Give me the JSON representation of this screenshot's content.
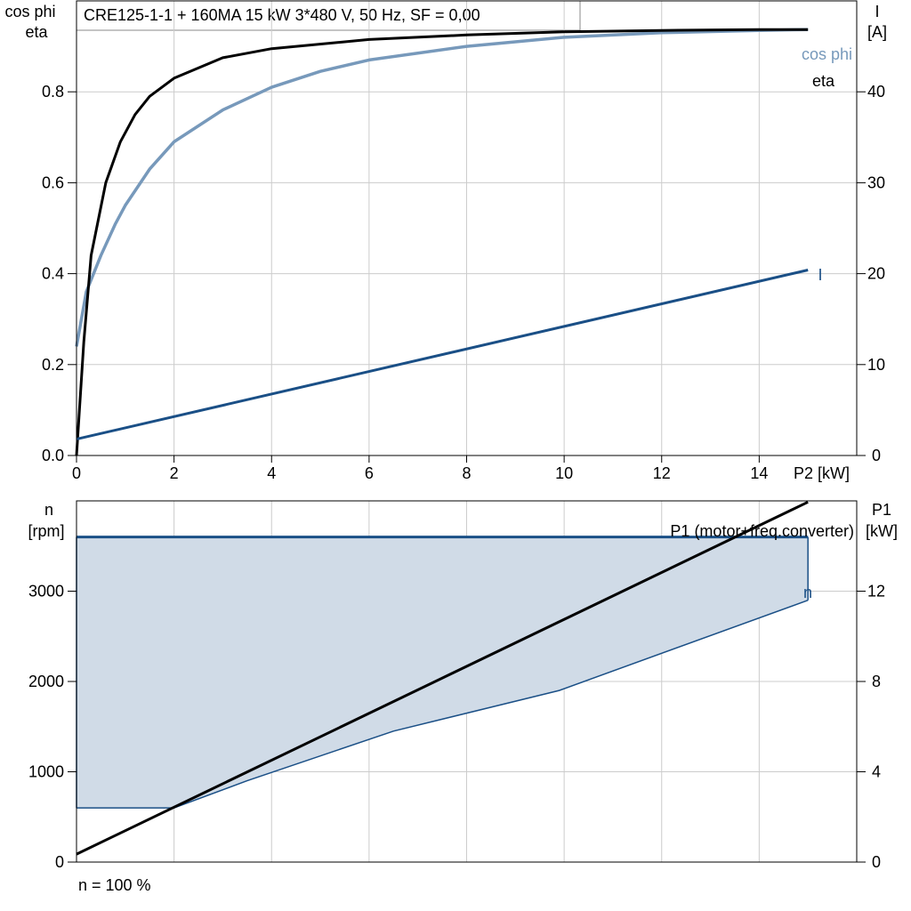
{
  "title": "CRE125-1-1 + 160MA   15 kW   3*480 V, 50 Hz, SF = 0,00",
  "colors": {
    "eta": "#000000",
    "cos_phi": "#7799bb",
    "current": "#1a4f86",
    "speed_fill": "#d0dbe7",
    "speed_line": "#1a4f86",
    "p1": "#000000",
    "grid": "#cccccc"
  },
  "footer_note": "n = 100 %",
  "chart_data": [
    {
      "type": "line",
      "xlabel": "P2 [kW]",
      "ylabel_left_line1": "cos phi",
      "ylabel_left_line2": "eta",
      "ylabel_right_line1": "I",
      "ylabel_right_line2": "[A]",
      "xlim": [
        0,
        16
      ],
      "ylim_left": [
        0,
        1.0
      ],
      "ylim_right": [
        0,
        50
      ],
      "grid": true,
      "x_ticks": [
        "0",
        "2",
        "4",
        "6",
        "8",
        "10",
        "12",
        "14"
      ],
      "left_ticks": [
        "0.0",
        "0.2",
        "0.4",
        "0.6",
        "0.8"
      ],
      "right_ticks": [
        "0",
        "10",
        "20",
        "30",
        "40"
      ],
      "series": [
        {
          "name": "eta",
          "axis": "left",
          "x": [
            0,
            0.15,
            0.3,
            0.6,
            0.9,
            1.2,
            1.5,
            2,
            3,
            4,
            6,
            8,
            10,
            12,
            14,
            15
          ],
          "y": [
            0.0,
            0.25,
            0.44,
            0.6,
            0.69,
            0.75,
            0.79,
            0.83,
            0.875,
            0.895,
            0.915,
            0.925,
            0.932,
            0.935,
            0.937,
            0.937
          ]
        },
        {
          "name": "cos phi",
          "axis": "left",
          "x": [
            0,
            0.2,
            0.5,
            0.8,
            1.0,
            1.5,
            2,
            3,
            4,
            5,
            6,
            8,
            10,
            12,
            14,
            15
          ],
          "y": [
            0.24,
            0.36,
            0.44,
            0.51,
            0.55,
            0.63,
            0.69,
            0.76,
            0.81,
            0.845,
            0.87,
            0.9,
            0.92,
            0.93,
            0.935,
            0.937
          ]
        },
        {
          "name": "I",
          "axis": "right",
          "x": [
            0,
            15
          ],
          "y": [
            1.8,
            20.4
          ]
        }
      ]
    },
    {
      "type": "area",
      "ylabel_left_line1": "n",
      "ylabel_left_line2": "[rpm]",
      "ylabel_right_line1": "P1",
      "ylabel_right_line2": "[kW]",
      "xlim": [
        0,
        16
      ],
      "ylim_left": [
        0,
        4000
      ],
      "ylim_right": [
        0,
        16
      ],
      "grid": true,
      "left_ticks": [
        "0",
        "1000",
        "2000",
        "3000"
      ],
      "right_ticks": [
        "0",
        "4",
        "8",
        "12"
      ],
      "series": [
        {
          "name": "n",
          "axis": "left",
          "upper": {
            "x": [
              0,
              15
            ],
            "y": [
              3600,
              3600
            ]
          },
          "lower": {
            "x": [
              0,
              2,
              3.5,
              6.5,
              9.9,
              15
            ],
            "y": [
              600,
              600,
              900,
              1450,
              1900,
              2900
            ]
          }
        },
        {
          "name": "P1 (motor+freq.converter)",
          "axis": "right",
          "x": [
            0,
            15
          ],
          "y": [
            0.35,
            15.95
          ]
        }
      ]
    }
  ]
}
